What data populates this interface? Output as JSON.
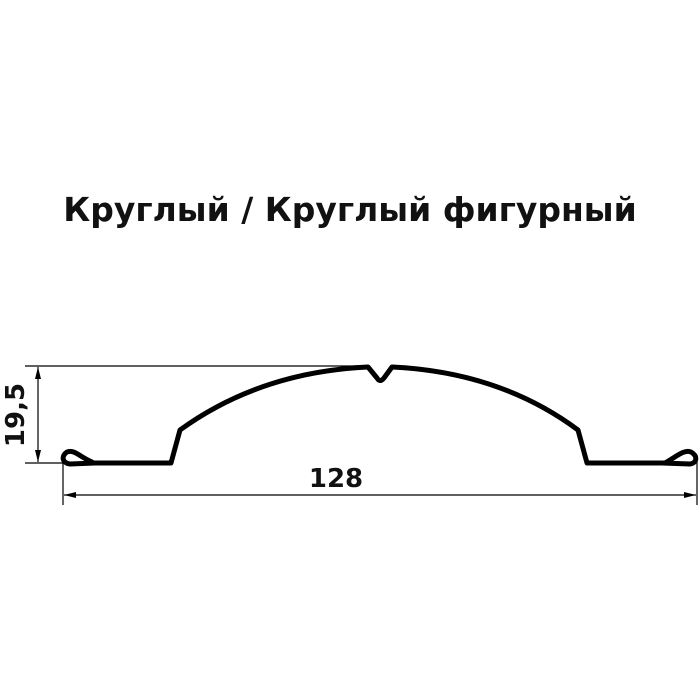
{
  "title": "Круглый / Круглый фигурный",
  "dimensions": {
    "height": "19,5",
    "width": "128"
  },
  "colors": {
    "profile": "#000000",
    "dimension_lines": "#000000",
    "background": "#ffffff"
  }
}
